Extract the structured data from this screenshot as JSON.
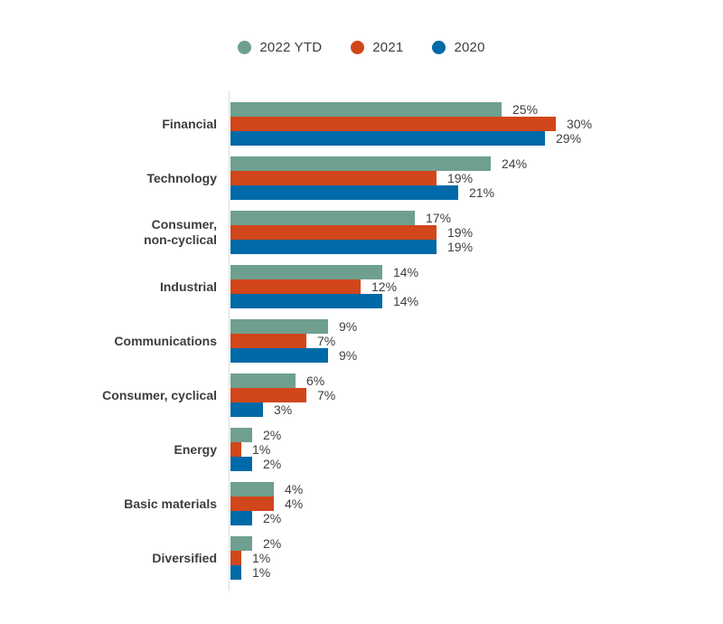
{
  "chart_data": {
    "type": "bar",
    "orientation": "horizontal",
    "title": "",
    "xlabel": "",
    "ylabel": "",
    "value_suffix": "%",
    "xlim": [
      0,
      30
    ],
    "grid": false,
    "value_axis_visible": false,
    "legend_position": "top",
    "bar_labels": "outside-end",
    "baseline_color": "#dcdcdc",
    "label_color": "#3d3d3d",
    "categories": [
      "Financial",
      "Technology",
      "Consumer,\nnon-cyclical",
      "Industrial",
      "Communications",
      "Consumer, cyclical",
      "Energy",
      "Basic materials",
      "Diversified"
    ],
    "series": [
      {
        "name": "2022 YTD",
        "color": "#6FA08F",
        "values": [
          25,
          24,
          17,
          14,
          9,
          6,
          2,
          4,
          2
        ]
      },
      {
        "name": "2021",
        "color": "#D1461A",
        "values": [
          30,
          19,
          19,
          12,
          7,
          7,
          1,
          4,
          1
        ]
      },
      {
        "name": "2020",
        "color": "#0069A7",
        "values": [
          29,
          21,
          19,
          14,
          9,
          3,
          2,
          2,
          1
        ]
      }
    ]
  }
}
